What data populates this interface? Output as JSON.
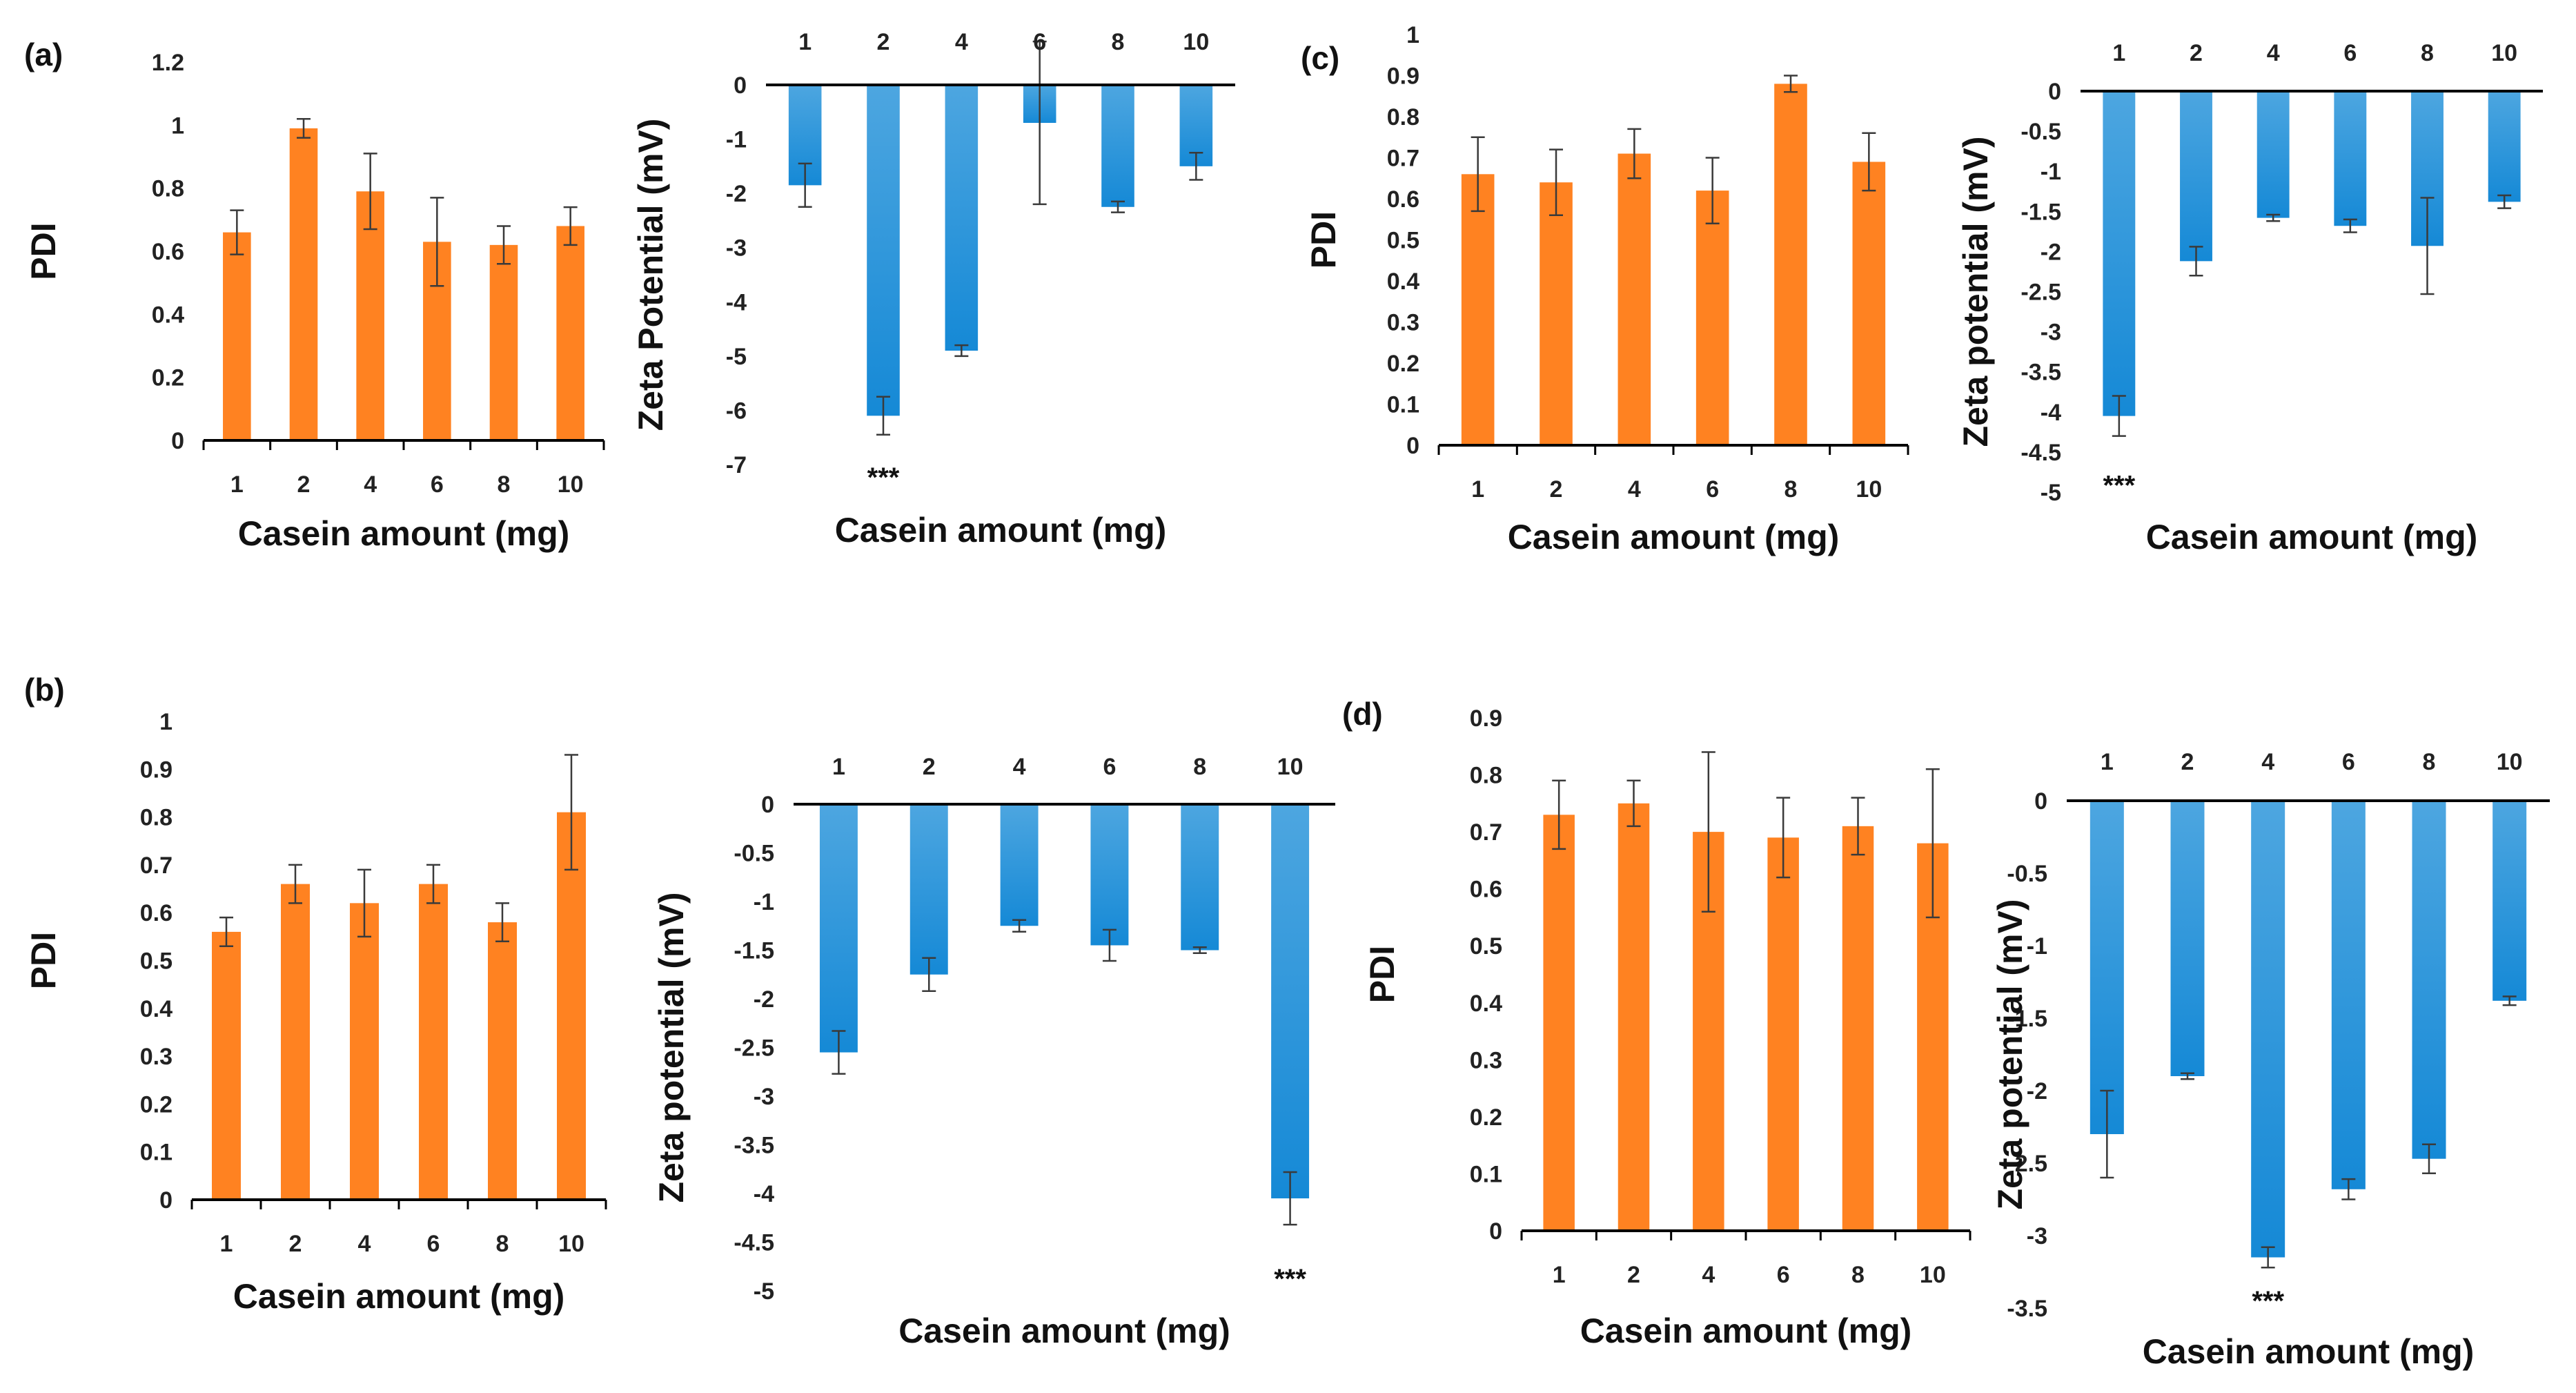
{
  "colors": {
    "pdi_bar": "#FF8221",
    "zeta_bar_top": "#4DA6E0",
    "zeta_bar_bottom": "#1589D6",
    "axis": "#000000",
    "error_bar": "#3a3a3a"
  },
  "chart_data": [
    {
      "id": "a-pdi",
      "panel_label": "(a)",
      "type": "bar",
      "categories": [
        "1",
        "2",
        "4",
        "6",
        "8",
        "10"
      ],
      "values": [
        0.66,
        0.99,
        0.79,
        0.63,
        0.62,
        0.68
      ],
      "errors": [
        0.07,
        0.03,
        0.12,
        0.14,
        0.06,
        0.06
      ],
      "ylim": [
        0,
        1.2
      ],
      "yticks": [
        "0",
        "0.2",
        "0.4",
        "0.6",
        "0.8",
        "1",
        "1.2"
      ],
      "xlabel": "Casein amount (mg)",
      "ylabel": "PDI",
      "significance": []
    },
    {
      "id": "a-zeta",
      "type": "bar",
      "categories": [
        "1",
        "2",
        "4",
        "6",
        "8",
        "10"
      ],
      "values": [
        -1.85,
        -6.1,
        -4.9,
        -0.7,
        -2.25,
        -1.5
      ],
      "errors": [
        0.4,
        0.35,
        0.1,
        1.5,
        0.1,
        0.25
      ],
      "ylim": [
        -7,
        0
      ],
      "yticks": [
        "0",
        "-1",
        "-2",
        "-3",
        "-4",
        "-5",
        "-6",
        "-7"
      ],
      "xlabel": "Casein amount (mg)",
      "ylabel": "Zeta Potential (mV)",
      "significance": [
        {
          "index": 1,
          "label": "***"
        }
      ]
    },
    {
      "id": "c-pdi",
      "panel_label": "(c)",
      "type": "bar",
      "categories": [
        "1",
        "2",
        "4",
        "6",
        "8",
        "10"
      ],
      "values": [
        0.66,
        0.64,
        0.71,
        0.62,
        0.88,
        0.69
      ],
      "errors": [
        0.09,
        0.08,
        0.06,
        0.08,
        0.02,
        0.07
      ],
      "ylim": [
        0,
        1
      ],
      "yticks": [
        "0",
        "0.1",
        "0.2",
        "0.3",
        "0.4",
        "0.5",
        "0.6",
        "0.7",
        "0.8",
        "0.9",
        "1"
      ],
      "xlabel": "Casein amount (mg)",
      "ylabel": "PDI",
      "significance": []
    },
    {
      "id": "c-zeta",
      "type": "bar",
      "categories": [
        "1",
        "2",
        "4",
        "6",
        "8",
        "10"
      ],
      "values": [
        -4.05,
        -2.12,
        -1.58,
        -1.68,
        -1.93,
        -1.38
      ],
      "errors": [
        0.25,
        0.18,
        0.04,
        0.08,
        0.6,
        0.08
      ],
      "ylim": [
        -5,
        0
      ],
      "yticks": [
        "0",
        "-0.5",
        "-1",
        "-1.5",
        "-2",
        "-2.5",
        "-3",
        "-3.5",
        "-4",
        "-4.5",
        "-5"
      ],
      "xlabel": "Casein amount (mg)",
      "ylabel": "Zeta potential (mV)",
      "significance": [
        {
          "index": 0,
          "label": "***"
        }
      ]
    },
    {
      "id": "b-pdi",
      "panel_label": "(b)",
      "type": "bar",
      "categories": [
        "1",
        "2",
        "4",
        "6",
        "8",
        "10"
      ],
      "values": [
        0.56,
        0.66,
        0.62,
        0.66,
        0.58,
        0.81
      ],
      "errors": [
        0.03,
        0.04,
        0.07,
        0.04,
        0.04,
        0.12
      ],
      "ylim": [
        0,
        1
      ],
      "yticks": [
        "0",
        "0.1",
        "0.2",
        "0.3",
        "0.4",
        "0.5",
        "0.6",
        "0.7",
        "0.8",
        "0.9",
        "1"
      ],
      "xlabel": "Casein amount (mg)",
      "ylabel": "PDI",
      "significance": []
    },
    {
      "id": "b-zeta",
      "type": "bar",
      "categories": [
        "1",
        "2",
        "4",
        "6",
        "8",
        "10"
      ],
      "values": [
        -2.55,
        -1.75,
        -1.25,
        -1.45,
        -1.5,
        -4.05
      ],
      "errors": [
        0.22,
        0.17,
        0.06,
        0.16,
        0.03,
        0.27
      ],
      "ylim": [
        -5,
        0
      ],
      "yticks": [
        "0",
        "-0.5",
        "-1",
        "-1.5",
        "-2",
        "-2.5",
        "-3",
        "-3.5",
        "-4",
        "-4.5",
        "-5"
      ],
      "xlabel": "Casein amount (mg)",
      "ylabel": "Zeta  potential (mV)",
      "significance": [
        {
          "index": 5,
          "label": "***"
        }
      ]
    },
    {
      "id": "d-pdi",
      "panel_label": "(d)",
      "type": "bar",
      "categories": [
        "1",
        "2",
        "4",
        "6",
        "8",
        "10"
      ],
      "values": [
        0.73,
        0.75,
        0.7,
        0.69,
        0.71,
        0.68
      ],
      "errors": [
        0.06,
        0.04,
        0.14,
        0.07,
        0.05,
        0.13
      ],
      "ylim": [
        0,
        0.9
      ],
      "yticks": [
        "0",
        "0.1",
        "0.2",
        "0.3",
        "0.4",
        "0.5",
        "0.6",
        "0.7",
        "0.8",
        "0.9"
      ],
      "xlabel": "Casein amount (mg)",
      "ylabel": "PDI",
      "significance": []
    },
    {
      "id": "d-zeta",
      "type": "bar",
      "categories": [
        "1",
        "2",
        "4",
        "6",
        "8",
        "10"
      ],
      "values": [
        -2.3,
        -1.9,
        -3.15,
        -2.68,
        -2.47,
        -1.38
      ],
      "errors": [
        0.3,
        0.02,
        0.07,
        0.07,
        0.1,
        0.03
      ],
      "ylim": [
        -3.5,
        0
      ],
      "yticks": [
        "0",
        "-0.5",
        "-1",
        "-1.5",
        "-2",
        "-2.5",
        "-3",
        "-3.5"
      ],
      "xlabel": "Casein amount (mg)",
      "ylabel": "Zeta potential (mV)",
      "significance": [
        {
          "index": 2,
          "label": "***"
        }
      ]
    }
  ]
}
